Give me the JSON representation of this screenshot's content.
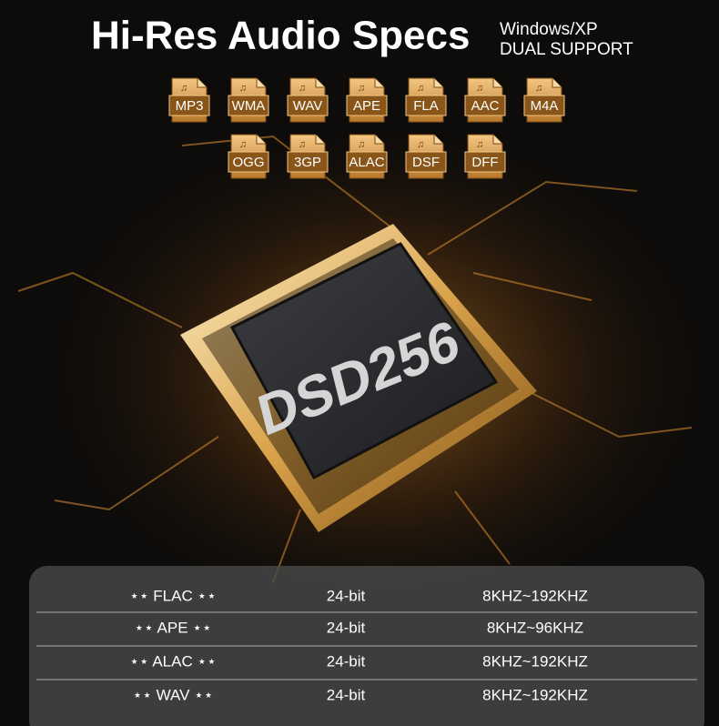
{
  "header": {
    "title": "Hi-Res Audio Specs",
    "subtitle_lines": [
      "Windows/XP",
      "DUAL SUPPORT"
    ]
  },
  "formats": {
    "row_1": [
      "MP3",
      "WMA",
      "WAV",
      "APE",
      "FLA",
      "AAC",
      "M4A"
    ],
    "row_2": [
      "OGG",
      "3GP",
      "ALAC",
      "DSF",
      "DFF"
    ]
  },
  "chip": {
    "label": "DSD256"
  },
  "table": {
    "rows": [
      [
        "⋆⋆ FLAC ⋆⋆",
        "24-bit",
        "8KHZ~192KHZ"
      ],
      [
        "⋆⋆ APE ⋆⋆",
        "24-bit",
        "8KHZ~96KHZ"
      ],
      [
        "⋆⋆ ALAC ⋆⋆",
        "24-bit",
        "8KHZ~192KHZ"
      ],
      [
        "⋆⋆ WAV ⋆⋆",
        "24-bit",
        "8KHZ~192KHZ"
      ]
    ]
  }
}
